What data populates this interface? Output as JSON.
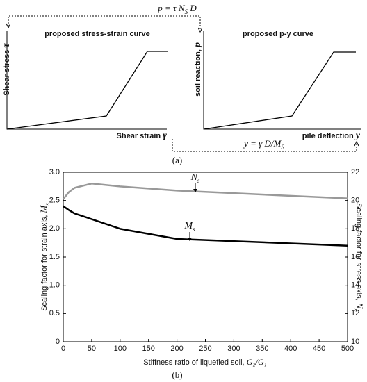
{
  "panel_a": {
    "caption": "(a)",
    "left": {
      "title": "proposed stress-strain curve",
      "ylabel": "Shear stress ",
      "ysymbol": "τ",
      "xlabel": "Shear strain ",
      "xsymbol": "γ"
    },
    "right": {
      "title": "proposed p-y curve",
      "ylabel": "soil reaction, ",
      "ysymbol": "p",
      "xlabel": "pile deflection ",
      "xsymbol": "y"
    },
    "eq_top": {
      "lhs": "p = τ N",
      "sub": "S",
      "rhs": " D"
    },
    "eq_bottom": {
      "lhs": "y = γ D/M",
      "sub": "S"
    }
  },
  "chart_data": {
    "type": "line",
    "caption": "(b)",
    "xlabel": {
      "text": "Stiffness ratio of liquefied soil, ",
      "symbol": "G₂/G₁"
    },
    "ylabel": {
      "text": "Scaling factor for strain axis, ",
      "symbol": "M",
      "sub": "s"
    },
    "y2label": {
      "text": "Scaling factor for stress axis, ",
      "symbol": "N",
      "sub": "s"
    },
    "x": [
      0,
      10,
      20,
      50,
      100,
      200,
      500
    ],
    "series": [
      {
        "name": "Ms",
        "color": "#000000",
        "axis": "y",
        "values": [
          2.4,
          2.33,
          2.27,
          2.17,
          2.0,
          1.82,
          1.7
        ]
      },
      {
        "name": "Ns",
        "color": "#999999",
        "axis": "y2",
        "values": [
          20.1,
          20.6,
          20.9,
          21.2,
          21.0,
          20.7,
          20.15
        ]
      }
    ],
    "annotations": [
      {
        "symbol": "N",
        "sub": "s"
      },
      {
        "symbol": "M",
        "sub": "s"
      }
    ],
    "xlim": [
      0,
      500
    ],
    "xticks": [
      0,
      50,
      100,
      150,
      200,
      250,
      300,
      350,
      400,
      450,
      500
    ],
    "ylim": [
      0,
      3
    ],
    "yticks": [
      0,
      0.5,
      {
        "value": 1,
        "label": "1.0"
      },
      1.5,
      {
        "value": 2,
        "label": "2.0"
      },
      2.5,
      {
        "value": 3,
        "label": "3.0"
      }
    ],
    "y2lim": [
      10,
      22
    ],
    "y2ticks": [
      10,
      12,
      14,
      16,
      18,
      20,
      22
    ]
  }
}
